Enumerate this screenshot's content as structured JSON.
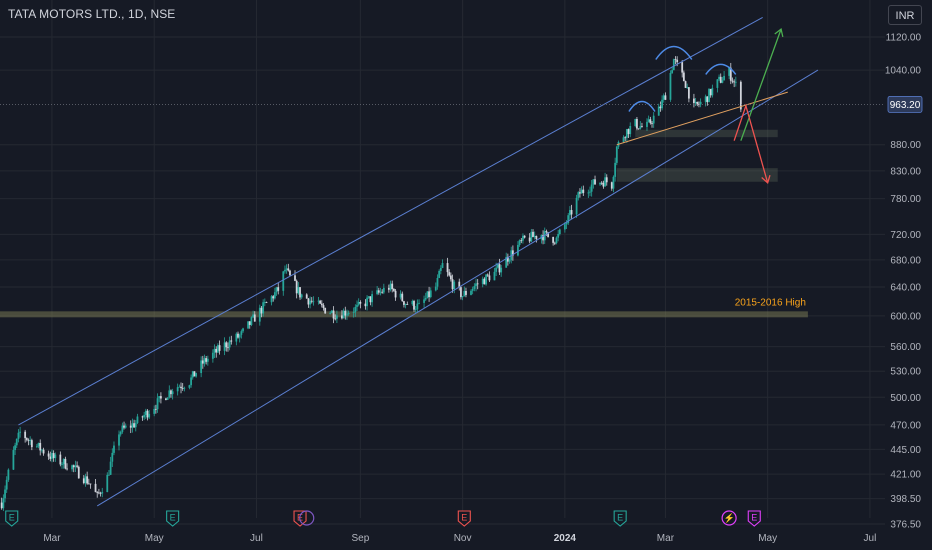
{
  "header": {
    "title": "TATA MOTORS LTD., 1D, NSE",
    "currency": "INR"
  },
  "colors": {
    "background": "#161a25",
    "grid": "#252932",
    "up": "#26a69a",
    "down": "#d1d4dc",
    "channel": "#5b7fd1",
    "support_band": "#5c6a58",
    "neckline": "#e0a060",
    "arrow_up": "#4caf50",
    "arrow_down": "#ef5350",
    "last_price_bg": "#2d3a5a",
    "annotation": "#f7a21b"
  },
  "chart_data": {
    "type": "candlestick",
    "title": "TATA MOTORS LTD., 1D, NSE",
    "yscale": "log",
    "ylim": [
      376.5,
      1160
    ],
    "xlim": [
      "2023-01-29",
      "2024-07-10"
    ],
    "grid": true,
    "y_ticks": [
      "1120.00",
      "1040.00",
      "880.00",
      "830.00",
      "780.00",
      "720.00",
      "680.00",
      "640.00",
      "600.00",
      "560.00",
      "530.00",
      "500.00",
      "470.00",
      "445.00",
      "421.00",
      "398.50",
      "376.50"
    ],
    "x_ticks": [
      {
        "label": "Mar",
        "date": "2023-03-01",
        "bold": false
      },
      {
        "label": "May",
        "date": "2023-05-01",
        "bold": false
      },
      {
        "label": "Jul",
        "date": "2023-07-01",
        "bold": false
      },
      {
        "label": "Sep",
        "date": "2023-09-01",
        "bold": false
      },
      {
        "label": "Nov",
        "date": "2023-11-01",
        "bold": false
      },
      {
        "label": "2024",
        "date": "2024-01-01",
        "bold": true
      },
      {
        "label": "Mar",
        "date": "2024-03-01",
        "bold": false
      },
      {
        "label": "May",
        "date": "2024-05-01",
        "bold": false
      },
      {
        "label": "Jul",
        "date": "2024-07-01",
        "bold": false
      }
    ],
    "last_price": {
      "value": 963.2,
      "label": "963.20"
    },
    "price_path": [
      [
        "2023-01-30",
        395
      ],
      [
        "2023-02-06",
        442
      ],
      [
        "2023-02-10",
        462
      ],
      [
        "2023-02-20",
        448
      ],
      [
        "2023-03-03",
        435
      ],
      [
        "2023-03-13",
        428
      ],
      [
        "2023-03-24",
        412
      ],
      [
        "2023-03-28",
        400
      ],
      [
        "2023-04-03",
        418
      ],
      [
        "2023-04-10",
        463
      ],
      [
        "2023-04-20",
        472
      ],
      [
        "2023-05-02",
        492
      ],
      [
        "2023-05-12",
        510
      ],
      [
        "2023-05-22",
        518
      ],
      [
        "2023-05-30",
        540
      ],
      [
        "2023-06-12",
        562
      ],
      [
        "2023-06-22",
        575
      ],
      [
        "2023-06-30",
        598
      ],
      [
        "2023-07-14",
        636
      ],
      [
        "2023-07-18",
        665
      ],
      [
        "2023-07-27",
        630
      ],
      [
        "2023-08-08",
        612
      ],
      [
        "2023-08-18",
        602
      ],
      [
        "2023-08-30",
        610
      ],
      [
        "2023-09-08",
        625
      ],
      [
        "2023-09-18",
        640
      ],
      [
        "2023-09-28",
        618
      ],
      [
        "2023-10-06",
        612
      ],
      [
        "2023-10-16",
        640
      ],
      [
        "2023-10-20",
        672
      ],
      [
        "2023-10-27",
        640
      ],
      [
        "2023-11-01",
        628
      ],
      [
        "2023-11-10",
        645
      ],
      [
        "2023-11-20",
        660
      ],
      [
        "2023-11-30",
        690
      ],
      [
        "2023-12-08",
        712
      ],
      [
        "2023-12-18",
        720
      ],
      [
        "2023-12-27",
        712
      ],
      [
        "2024-01-03",
        745
      ],
      [
        "2024-01-10",
        790
      ],
      [
        "2024-01-19",
        808
      ],
      [
        "2024-01-25",
        812
      ],
      [
        "2024-01-29",
        805
      ],
      [
        "2024-02-01",
        875
      ],
      [
        "2024-02-06",
        905
      ],
      [
        "2024-02-12",
        922
      ],
      [
        "2024-02-18",
        912
      ],
      [
        "2024-02-26",
        950
      ],
      [
        "2024-03-01",
        985
      ],
      [
        "2024-03-06",
        1065
      ],
      [
        "2024-03-13",
        1010
      ],
      [
        "2024-03-18",
        955
      ],
      [
        "2024-03-25",
        975
      ],
      [
        "2024-04-02",
        1015
      ],
      [
        "2024-04-08",
        1035
      ],
      [
        "2024-04-12",
        1005
      ],
      [
        "2024-04-15",
        963.2
      ]
    ],
    "channel_lines": [
      {
        "name": "channel-upper",
        "from": [
          "2023-02-09",
          470
        ],
        "to": [
          "2024-04-28",
          1170
        ]
      },
      {
        "name": "channel-lower",
        "from": [
          "2023-03-28",
          392
        ],
        "to": [
          "2024-05-31",
          1040
        ]
      }
    ],
    "neckline": {
      "from": [
        "2024-02-01",
        880
      ],
      "to": [
        "2024-05-13",
        990
      ]
    },
    "support_zones": [
      {
        "from": "2024-02-12",
        "to": "2024-05-07",
        "ylow": 895,
        "yhigh": 910
      },
      {
        "from": "2024-02-01",
        "to": "2024-05-07",
        "ylow": 810,
        "yhigh": 835
      }
    ],
    "horizontal_level": {
      "value": 602,
      "label": "2015-2016 High",
      "to": "2024-05-25"
    },
    "projection_up": {
      "from": [
        "2024-04-15",
        888
      ],
      "to": [
        "2024-05-09",
        1140
      ]
    },
    "projection_down": {
      "from": [
        "2024-04-11",
        888
      ],
      "mid": [
        "2024-04-18",
        960
      ],
      "to": [
        "2024-05-01",
        808
      ]
    },
    "head_shoulders_arcs": [
      {
        "date": "2024-02-16",
        "y": 948,
        "w": 13,
        "h": 10
      },
      {
        "date": "2024-03-06",
        "y": 1065,
        "w": 18,
        "h": 13
      },
      {
        "date": "2024-04-03",
        "y": 1030,
        "w": 15,
        "h": 10
      }
    ],
    "events": [
      {
        "type": "earnings",
        "label": "E",
        "date": "2023-02-05",
        "color": "#26a69a"
      },
      {
        "type": "earnings",
        "label": "E",
        "date": "2023-05-12",
        "color": "#26a69a"
      },
      {
        "type": "earnings",
        "label": "E",
        "date": "2023-07-27",
        "color": "#ef5350"
      },
      {
        "type": "dividend",
        "label": "",
        "date": "2023-07-31",
        "color": "#7e57c2"
      },
      {
        "type": "earnings",
        "label": "E",
        "date": "2023-11-02",
        "color": "#ef5350"
      },
      {
        "type": "earnings",
        "label": "E",
        "date": "2024-02-03",
        "color": "#26a69a"
      },
      {
        "type": "split",
        "label": "⚡",
        "date": "2024-04-08",
        "color": "#e040fb"
      },
      {
        "type": "earnings",
        "label": "E",
        "date": "2024-04-23",
        "color": "#e040fb"
      }
    ]
  }
}
